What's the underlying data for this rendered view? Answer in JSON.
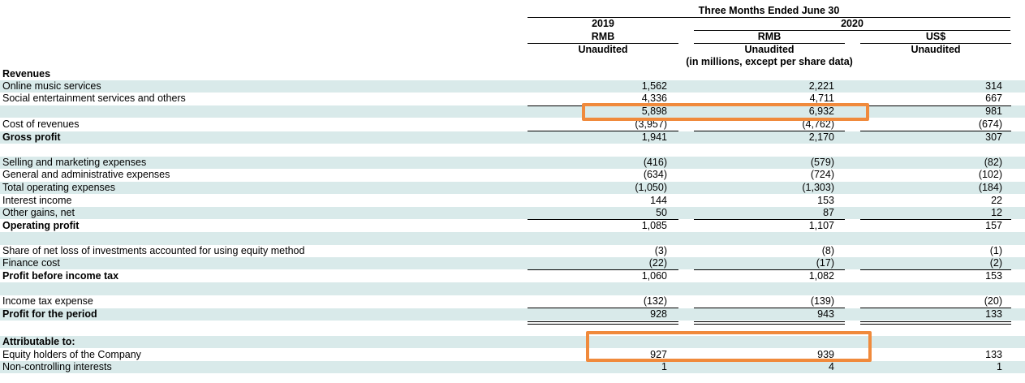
{
  "header": {
    "period": "Three Months Ended June 30",
    "year_2019": "2019",
    "year_2020": "2020",
    "col1_currency": "RMB",
    "col1_status": "Unaudited",
    "col2_currency": "RMB",
    "col2_status": "Unaudited",
    "col2_note": "(in millions, except per share data)",
    "col3_currency": "US$",
    "col3_status": "Unaudited"
  },
  "rows": [
    {
      "label": "Revenues",
      "v1": "",
      "v2": "",
      "v3": ""
    },
    {
      "label": "Online music services",
      "v1": "1,562",
      "v2": "2,221",
      "v3": "314"
    },
    {
      "label": "Social entertainment services and others",
      "v1": "4,336",
      "v2": "4,711",
      "v3": "667"
    },
    {
      "label": "",
      "v1": "5,898",
      "v2": "6,932",
      "v3": "981"
    },
    {
      "label": "Cost of revenues",
      "v1": "(3,957)",
      "v2": "(4,762)",
      "v3": "(674)"
    },
    {
      "label": "Gross profit",
      "v1": "1,941",
      "v2": "2,170",
      "v3": "307"
    },
    {
      "label": "Selling and marketing expenses",
      "v1": "(416)",
      "v2": "(579)",
      "v3": "(82)"
    },
    {
      "label": "General and administrative expenses",
      "v1": "(634)",
      "v2": "(724)",
      "v3": "(102)"
    },
    {
      "label": "Total operating expenses",
      "v1": "(1,050)",
      "v2": "(1,303)",
      "v3": "(184)"
    },
    {
      "label": "Interest income",
      "v1": "144",
      "v2": "153",
      "v3": "22"
    },
    {
      "label": "Other gains, net",
      "v1": "50",
      "v2": "87",
      "v3": "12"
    },
    {
      "label": "Operating profit",
      "v1": "1,085",
      "v2": "1,107",
      "v3": "157"
    },
    {
      "label": "Share of net loss of investments accounted for using equity method",
      "v1": "(3)",
      "v2": "(8)",
      "v3": "(1)"
    },
    {
      "label": "Finance cost",
      "v1": "(22)",
      "v2": "(17)",
      "v3": "(2)"
    },
    {
      "label": "Profit before income tax",
      "v1": "1,060",
      "v2": "1,082",
      "v3": "153"
    },
    {
      "label": "Income tax expense",
      "v1": "(132)",
      "v2": "(139)",
      "v3": "(20)"
    },
    {
      "label": "Profit for the period",
      "v1": "928",
      "v2": "943",
      "v3": "133"
    },
    {
      "label": "Attributable to:",
      "v1": "",
      "v2": "",
      "v3": ""
    },
    {
      "label": "Equity holders of the Company",
      "v1": "927",
      "v2": "939",
      "v3": "133"
    },
    {
      "label": "Non-controlling interests",
      "v1": "1",
      "v2": "4",
      "v3": "1"
    }
  ],
  "colors": {
    "row_shade": "#d9eaea",
    "highlight_box": "#f08a3c"
  }
}
